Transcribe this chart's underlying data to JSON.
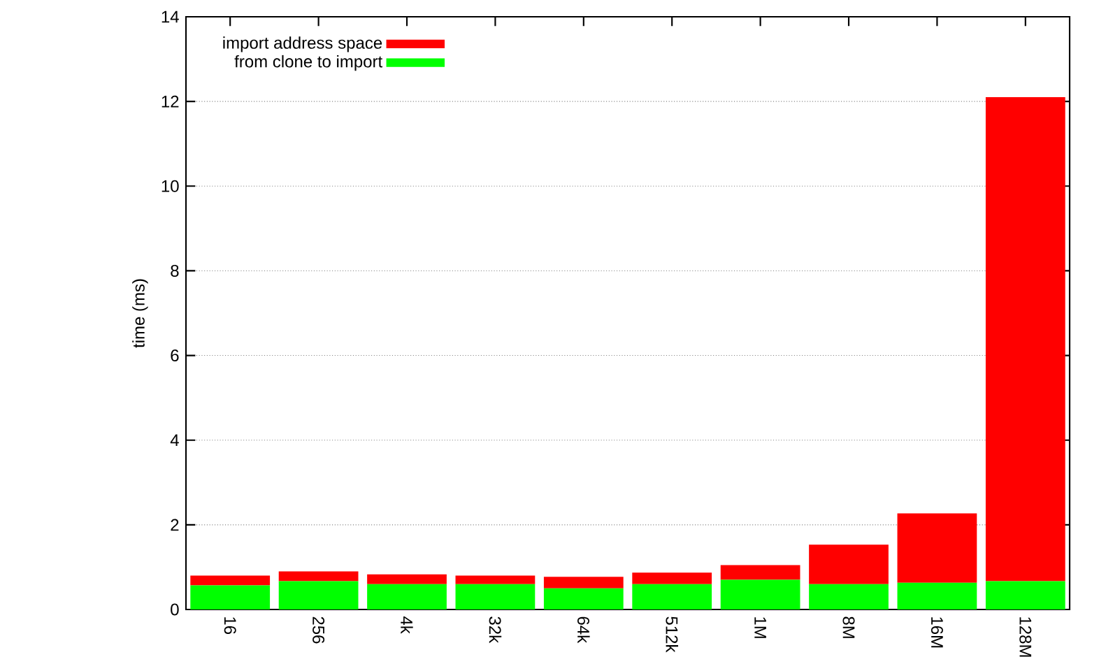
{
  "chart_data": {
    "type": "bar",
    "stacked": true,
    "ylabel": "time (ms)",
    "categories": [
      "16",
      "256",
      "4k",
      "32k",
      "64k",
      "512k",
      "1M",
      "8M",
      "16M",
      "128M"
    ],
    "series": [
      {
        "name": "from clone to import",
        "color": "#00ff00",
        "values": [
          0.57,
          0.67,
          0.6,
          0.6,
          0.5,
          0.6,
          0.7,
          0.6,
          0.63,
          0.67
        ]
      },
      {
        "name": "import address space",
        "color": "#ff0000",
        "values": [
          0.23,
          0.23,
          0.23,
          0.2,
          0.27,
          0.27,
          0.35,
          0.93,
          1.64,
          11.43
        ]
      }
    ],
    "ylim": [
      0,
      14
    ],
    "yticks": [
      0,
      2,
      4,
      6,
      8,
      10,
      12,
      14
    ],
    "grid": "y",
    "legend": "top left"
  }
}
